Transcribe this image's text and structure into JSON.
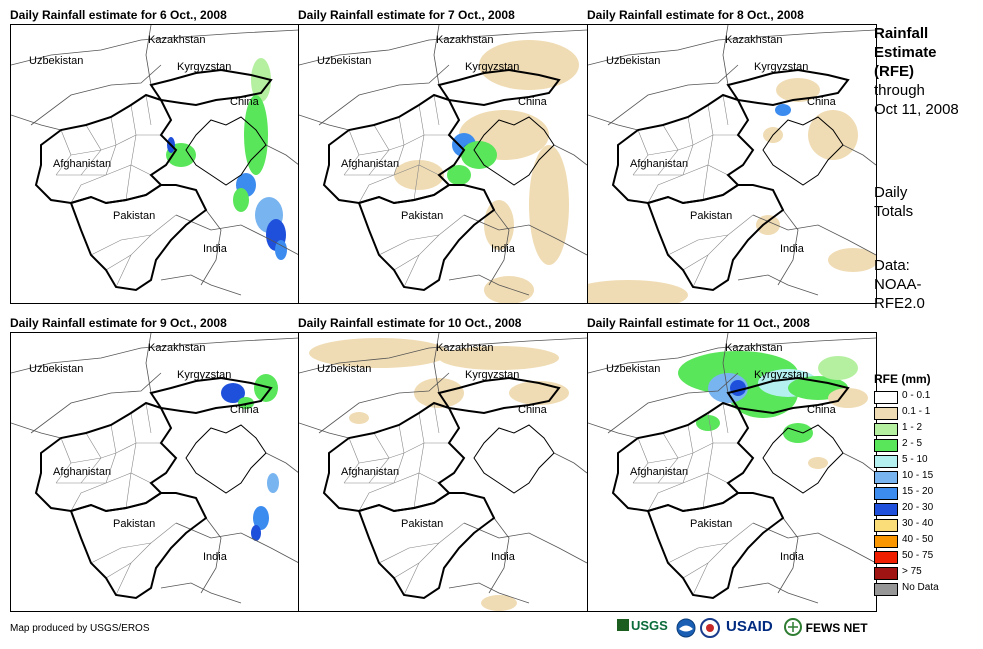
{
  "panels": [
    {
      "title": "Daily Rainfall estimate for 6 Oct., 2008"
    },
    {
      "title": "Daily Rainfall estimate for 7 Oct., 2008"
    },
    {
      "title": "Daily Rainfall estimate for 8 Oct., 2008"
    },
    {
      "title": "Daily Rainfall estimate for 9 Oct., 2008"
    },
    {
      "title": "Daily Rainfall estimate for 10 Oct., 2008"
    },
    {
      "title": "Daily Rainfall estimate for 11 Oct., 2008"
    }
  ],
  "map_labels": {
    "kazakhstan": "Kazakhstan",
    "uzbekistan": "Uzbekistan",
    "kyrgyzstan": "Kyrgyzstan",
    "china": "China",
    "afghanistan": "Afghanistan",
    "pakistan": "Pakistan",
    "india": "India"
  },
  "side": {
    "title_line1": "Rainfall",
    "title_line2": "Estimate",
    "title_line3": "(RFE)",
    "through": "through",
    "date": "Oct 11, 2008",
    "daily1": "Daily",
    "daily2": "Totals",
    "data1": "Data:",
    "data2": "NOAA-",
    "data3": "RFE2.0"
  },
  "legend": {
    "title": "RFE (mm)",
    "items": [
      {
        "label": "0 - 0.1",
        "color": "#ffffff"
      },
      {
        "label": "0.1 - 1",
        "color": "#f0dcb4"
      },
      {
        "label": "1 - 2",
        "color": "#b4f0a0"
      },
      {
        "label": "2 - 5",
        "color": "#5ae65a"
      },
      {
        "label": "5 - 10",
        "color": "#b4f0f0"
      },
      {
        "label": "10 - 15",
        "color": "#78b4f0"
      },
      {
        "label": "15 - 20",
        "color": "#3c8cf0"
      },
      {
        "label": "20 - 30",
        "color": "#1e50dc"
      },
      {
        "label": "30 - 40",
        "color": "#fadc78"
      },
      {
        "label": "40 - 50",
        "color": "#fa9600"
      },
      {
        "label": "50 - 75",
        "color": "#f01e00"
      },
      {
        "label": "> 75",
        "color": "#a01414"
      },
      {
        "label": "No Data",
        "color": "#969696"
      }
    ]
  },
  "footer": {
    "credit": "Map produced by USGS/EROS",
    "usgs": "USGS",
    "usaid": "USAID",
    "fewsnet": "FEWS NET"
  }
}
